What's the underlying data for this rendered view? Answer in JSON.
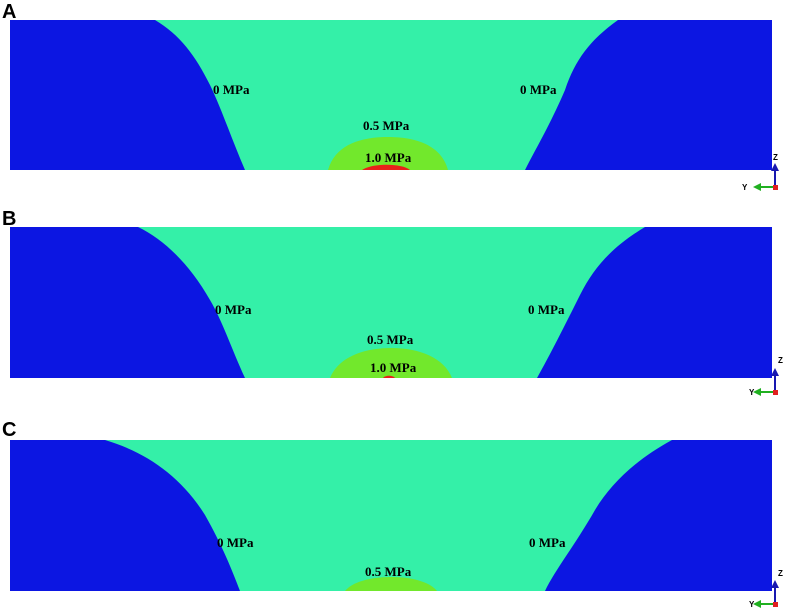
{
  "panels": [
    {
      "label": "A",
      "annotations": [
        "0 MPa",
        "0 MPa",
        "0.5 MPa",
        "1.0 MPa"
      ],
      "axes": [
        "Z",
        "Y"
      ]
    },
    {
      "label": "B",
      "annotations": [
        "0 MPa",
        "0 MPa",
        "0.5 MPa",
        "1.0 MPa"
      ],
      "axes": [
        "Z",
        "Y"
      ]
    },
    {
      "label": "C",
      "annotations": [
        "0 MPa",
        "0 MPa",
        "0.5 MPa"
      ],
      "axes": [
        "Z",
        "Y"
      ]
    }
  ]
}
